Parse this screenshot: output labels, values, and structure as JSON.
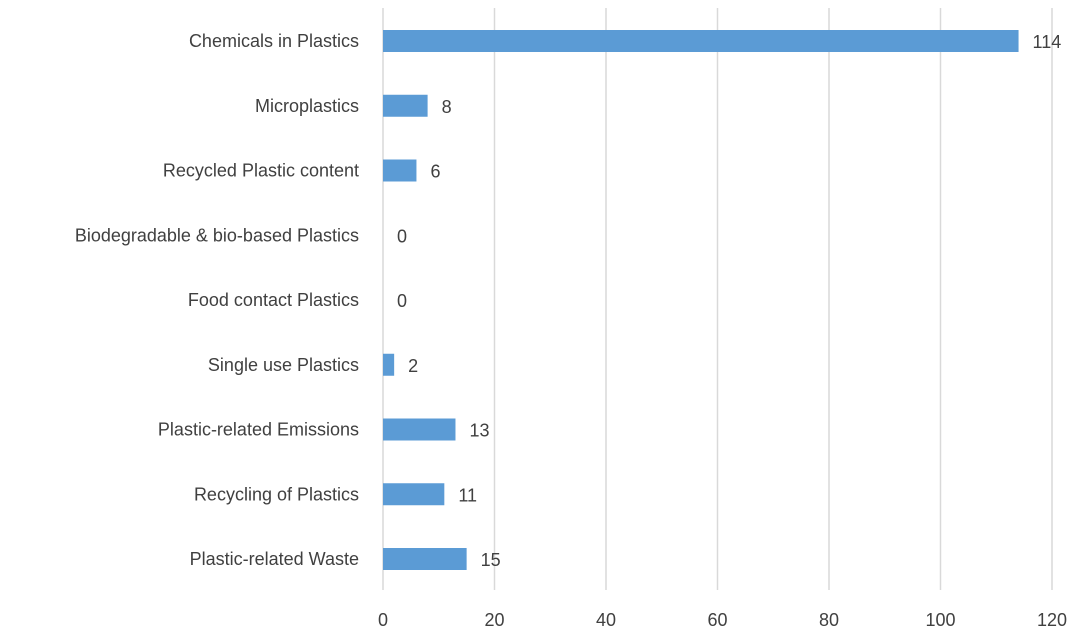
{
  "chart_data": {
    "type": "bar",
    "orientation": "horizontal",
    "categories": [
      "Chemicals in Plastics",
      "Microplastics",
      "Recycled Plastic content",
      "Biodegradable & bio-based Plastics",
      "Food contact Plastics",
      "Single use Plastics",
      "Plastic-related Emissions",
      "Recycling of Plastics",
      "Plastic-related Waste"
    ],
    "values": [
      114,
      8,
      6,
      0,
      0,
      2,
      13,
      11,
      15
    ],
    "value_labels": [
      "114",
      "8",
      "6",
      "0",
      "0",
      "2",
      "13",
      "11",
      "15"
    ],
    "xlim": [
      0,
      120
    ],
    "x_ticks": [
      0,
      20,
      40,
      60,
      80,
      100,
      120
    ],
    "x_tick_labels": [
      "0",
      "20",
      "40",
      "60",
      "80",
      "100",
      "120"
    ],
    "grid": "vertical",
    "bar_color": "#5b9bd5",
    "title": "",
    "xlabel": "",
    "ylabel": ""
  }
}
